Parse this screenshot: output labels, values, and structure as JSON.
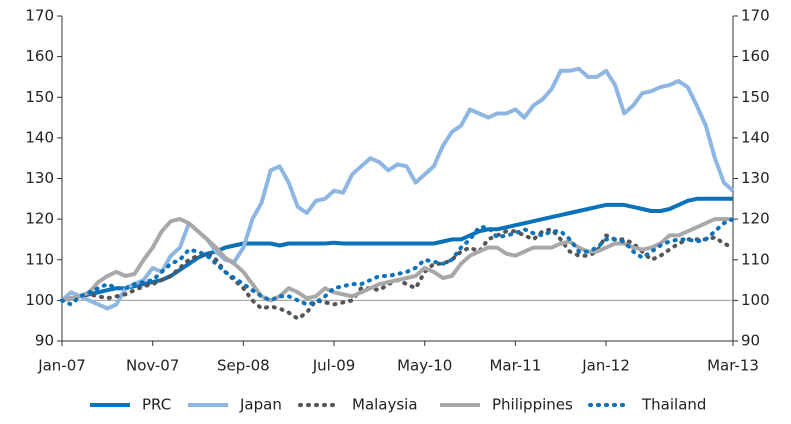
{
  "chart_data": {
    "type": "line",
    "categories": [
      "Jan-07",
      null,
      null,
      null,
      null,
      null,
      null,
      null,
      null,
      null,
      "Nov-07",
      null,
      null,
      null,
      null,
      null,
      null,
      null,
      null,
      null,
      "Sep-08",
      null,
      null,
      null,
      null,
      null,
      null,
      null,
      null,
      null,
      "Jul-09",
      null,
      null,
      null,
      null,
      null,
      null,
      null,
      null,
      null,
      "May-10",
      null,
      null,
      null,
      null,
      null,
      null,
      null,
      null,
      null,
      "Mar-11",
      null,
      null,
      null,
      null,
      null,
      null,
      null,
      null,
      null,
      "Jan-12",
      null,
      null,
      null,
      null,
      null,
      null,
      null,
      null,
      null,
      null,
      null,
      null,
      null,
      "Mar-13"
    ],
    "series": [
      {
        "name": "PRC",
        "color": "#0a72ba",
        "dash": false,
        "values": [
          100,
          100.5,
          101,
          101.5,
          102,
          102.5,
          103,
          103,
          103.5,
          104,
          104.5,
          105,
          106,
          107.5,
          109,
          110.5,
          111.5,
          112,
          113,
          113.5,
          114,
          114,
          114,
          114,
          113.5,
          114,
          114,
          114,
          114,
          114,
          114.2,
          114,
          114,
          114,
          114,
          114,
          114,
          114,
          114,
          114,
          114,
          114,
          114.5,
          115,
          115,
          116,
          117,
          117.5,
          117.5,
          118,
          118.5,
          119,
          119.5,
          120,
          120.5,
          121,
          121.5,
          122,
          122.5,
          123,
          123.5,
          123.5,
          123.5,
          123,
          122.5,
          122,
          122,
          122.5,
          123.5,
          124.5,
          125,
          125,
          125,
          125,
          125
        ]
      },
      {
        "name": "Japan",
        "color": "#8db6e2",
        "dash": false,
        "values": [
          100,
          102,
          101,
          100,
          99,
          98,
          99,
          103,
          104,
          105,
          108,
          107,
          111,
          113,
          119,
          117,
          115,
          112,
          110,
          109.5,
          113,
          120,
          124,
          132,
          133,
          129,
          123,
          121.5,
          124.5,
          125,
          127,
          126.5,
          131,
          133,
          135,
          134,
          132,
          133.5,
          133,
          129,
          131,
          133,
          138,
          141.5,
          143,
          147,
          146,
          145,
          146,
          146,
          147,
          145,
          148,
          149.5,
          152,
          156.5,
          156.5,
          157,
          155,
          155,
          156.5,
          153,
          146,
          148,
          151,
          151.5,
          152.5,
          153,
          154,
          152.5,
          148,
          143,
          135,
          129,
          127
        ]
      },
      {
        "name": "Malaysia",
        "color": "#555555",
        "dash": true,
        "values": [
          100,
          100.5,
          101,
          101.5,
          101,
          100.5,
          101,
          101.5,
          102.5,
          103.5,
          104,
          105,
          106,
          108,
          110,
          111,
          111.5,
          110,
          107,
          105,
          103,
          100,
          98,
          98.5,
          98,
          97,
          95.5,
          97,
          100,
          99.5,
          99,
          99.5,
          100,
          103,
          103,
          102.5,
          104,
          105,
          104,
          103,
          107,
          109,
          109,
          110,
          112,
          113,
          112,
          115,
          116,
          117,
          117,
          116,
          115,
          117,
          117.5,
          115,
          112,
          111,
          111,
          112,
          116,
          115,
          115,
          114,
          112,
          110,
          111,
          112.5,
          114,
          115,
          115,
          115,
          115.5,
          114,
          113
        ]
      },
      {
        "name": "Philippines",
        "color": "#a8a8a8",
        "dash": false,
        "values": [
          100,
          100.5,
          101,
          102,
          104.5,
          106,
          107,
          106,
          106.5,
          110,
          113,
          117,
          119.5,
          120,
          119,
          117,
          115,
          113,
          110.5,
          109,
          107,
          104,
          101,
          100,
          101,
          103,
          102,
          100.5,
          101,
          103,
          102,
          101.5,
          101,
          102,
          103,
          104,
          104.5,
          105,
          105.5,
          106,
          108,
          107,
          105.5,
          106,
          109,
          111,
          112,
          113,
          113,
          111.5,
          111,
          112,
          113,
          113,
          113,
          114,
          114.5,
          113,
          112,
          112,
          113,
          114,
          114,
          113,
          112.5,
          113,
          114,
          116,
          116,
          117,
          118,
          119,
          120,
          120,
          120
        ]
      },
      {
        "name": "Thailand",
        "color": "#0a72ba",
        "dash": true,
        "values": [
          100,
          99,
          101,
          102,
          103,
          104,
          103,
          103,
          104,
          104.5,
          105,
          107,
          109,
          110,
          112.5,
          112,
          111,
          109,
          107,
          105.5,
          104,
          102.5,
          101,
          100,
          101,
          101,
          100,
          99,
          99.5,
          101,
          103,
          103.5,
          104,
          104,
          105,
          106,
          106,
          106.5,
          107,
          108,
          110,
          109.5,
          109,
          110,
          113,
          115,
          118,
          118,
          115.5,
          116,
          116.5,
          117.5,
          116.5,
          116,
          117,
          117,
          115,
          112,
          112,
          113,
          115,
          115,
          114.5,
          112,
          110.5,
          112,
          113.5,
          114.5,
          115,
          115,
          114.5,
          115,
          117,
          119,
          120
        ]
      }
    ],
    "ylim": [
      90,
      170
    ],
    "yticks": [
      90,
      100,
      110,
      120,
      130,
      140,
      150,
      160,
      170
    ],
    "y2lim": [
      90,
      170
    ],
    "y2ticks": [
      90,
      100,
      110,
      120,
      130,
      140,
      150,
      160,
      170
    ],
    "hline": 100,
    "legend": "bottom"
  }
}
